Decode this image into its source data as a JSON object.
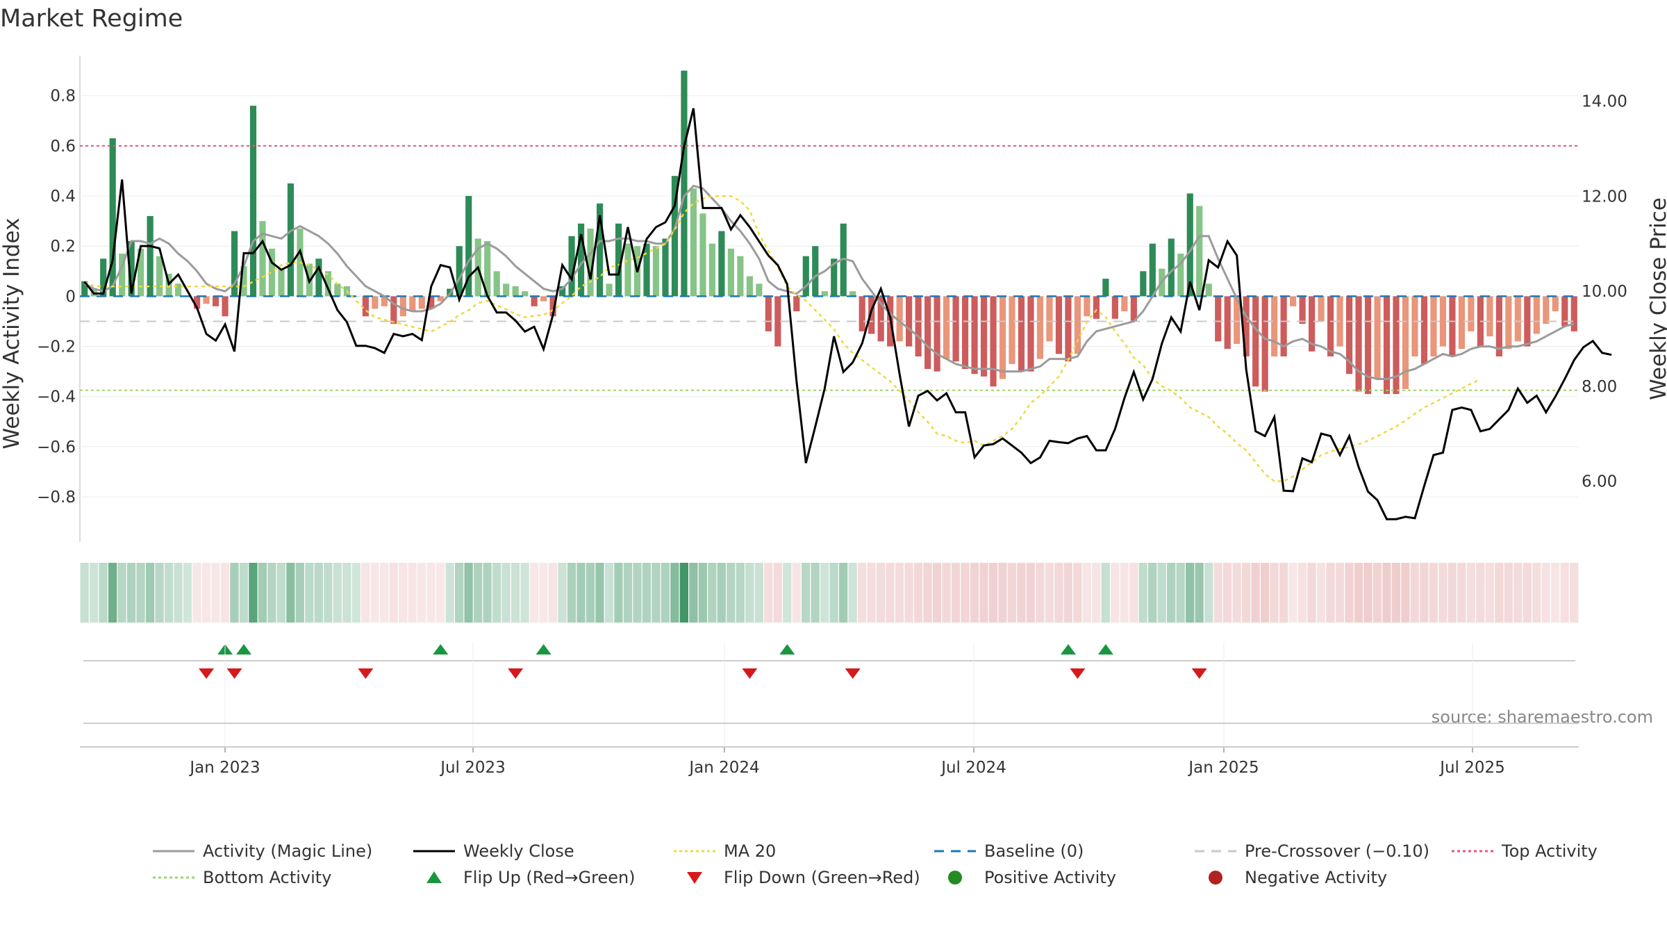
{
  "chart_data": {
    "type": "bar",
    "title": "Market Regime",
    "left_axis_label": "Weekly Activity Index",
    "right_axis_label": "Weekly Close Price",
    "left_ticks": [
      "0.8",
      "0.6",
      "0.4",
      "0.2",
      "0",
      "−0.2",
      "−0.4",
      "−0.6",
      "−0.8"
    ],
    "right_ticks": [
      "14.00",
      "12.00",
      "10.00",
      "8.00",
      "6.00"
    ],
    "x_ticks": [
      "Jan 2023",
      "Jul 2023",
      "Jan 2024",
      "Jul 2024",
      "Jan 2025",
      "Jul 2025"
    ],
    "ylim_left": [
      -0.98,
      0.96
    ],
    "ylim_right": [
      4.72,
      14.96
    ],
    "reference_lines": {
      "top_activity": 0.6,
      "bottom_activity": -0.375,
      "pre_crossover": -0.1,
      "baseline": 0
    },
    "activity_index": [
      0.06,
      0.03,
      0.15,
      0.63,
      0.17,
      0.22,
      0.19,
      0.32,
      0.16,
      0.09,
      0.05,
      0.0,
      -0.05,
      -0.03,
      -0.04,
      -0.08,
      0.26,
      0.12,
      0.76,
      0.3,
      0.19,
      0.11,
      0.45,
      0.27,
      0.13,
      0.15,
      0.1,
      0.05,
      0.04,
      0.0,
      -0.08,
      -0.05,
      -0.04,
      -0.11,
      -0.08,
      -0.06,
      -0.05,
      -0.05,
      -0.02,
      0.03,
      0.2,
      0.4,
      0.23,
      0.22,
      0.1,
      0.05,
      0.04,
      0.02,
      -0.04,
      -0.02,
      -0.08,
      0.04,
      0.24,
      0.29,
      0.27,
      0.37,
      0.05,
      0.29,
      0.21,
      0.2,
      0.21,
      0.2,
      0.23,
      0.48,
      0.9,
      0.43,
      0.33,
      0.21,
      0.26,
      0.19,
      0.16,
      0.08,
      0.05,
      -0.14,
      -0.2,
      0.0,
      -0.06,
      0.16,
      0.2,
      0.02,
      0.15,
      0.29,
      0.02,
      -0.14,
      -0.15,
      -0.18,
      -0.2,
      -0.18,
      -0.2,
      -0.24,
      -0.29,
      -0.3,
      -0.25,
      -0.26,
      -0.29,
      -0.31,
      -0.32,
      -0.36,
      -0.33,
      -0.27,
      -0.3,
      -0.3,
      -0.25,
      -0.18,
      -0.23,
      -0.26,
      -0.23,
      -0.08,
      -0.09,
      0.07,
      -0.09,
      -0.06,
      -0.1,
      0.1,
      0.21,
      0.11,
      0.23,
      0.17,
      0.41,
      0.36,
      0.05,
      -0.18,
      -0.21,
      -0.19,
      -0.24,
      -0.36,
      -0.38,
      -0.24,
      -0.24,
      -0.04,
      -0.11,
      -0.22,
      -0.1,
      -0.24,
      -0.2,
      -0.31,
      -0.38,
      -0.39,
      -0.33,
      -0.39,
      -0.39,
      -0.37,
      -0.24,
      -0.27,
      -0.24,
      -0.2,
      -0.24,
      -0.21,
      -0.14,
      -0.2,
      -0.16,
      -0.24,
      -0.21,
      -0.18,
      -0.2,
      -0.15,
      -0.11,
      -0.06,
      -0.12,
      -0.14
    ],
    "weekly_close": [
      10.2,
      9.95,
      9.95,
      10.65,
      12.35,
      9.95,
      10.95,
      10.95,
      10.9,
      10.15,
      10.35,
      10.0,
      9.65,
      9.1,
      8.96,
      9.3,
      8.73,
      10.8,
      10.8,
      11.05,
      10.6,
      10.45,
      10.55,
      10.85,
      10.2,
      10.5,
      10.05,
      9.6,
      9.35,
      8.85,
      8.85,
      8.8,
      8.7,
      9.1,
      9.05,
      9.1,
      8.97,
      10.1,
      10.55,
      10.5,
      9.82,
      10.3,
      10.5,
      9.9,
      9.55,
      9.55,
      9.38,
      9.15,
      9.25,
      8.78,
      9.5,
      10.55,
      10.25,
      11.2,
      10.25,
      11.6,
      10.35,
      10.35,
      11.35,
      10.4,
      11.1,
      11.35,
      11.45,
      11.8,
      13.05,
      13.85,
      11.75,
      11.75,
      11.75,
      11.3,
      11.6,
      11.35,
      11.05,
      10.75,
      10.55,
      10.15,
      8.1,
      6.38,
      7.15,
      7.95,
      9.05,
      8.3,
      8.5,
      8.9,
      9.6,
      10.05,
      9.45,
      8.25,
      7.15,
      7.8,
      7.9,
      7.7,
      7.85,
      7.45,
      7.45,
      6.5,
      6.75,
      6.78,
      6.9,
      6.75,
      6.6,
      6.38,
      6.5,
      6.85,
      6.82,
      6.8,
      6.9,
      6.95,
      6.65,
      6.65,
      7.1,
      7.75,
      8.3,
      7.72,
      8.15,
      8.9,
      9.45,
      9.15,
      10.2,
      9.6,
      10.65,
      10.5,
      11.05,
      10.75,
      8.35,
      7.05,
      6.95,
      7.35,
      5.8,
      5.79,
      6.48,
      6.4,
      7.0,
      6.95,
      6.55,
      6.95,
      6.3,
      5.78,
      5.6,
      5.2,
      5.2,
      5.25,
      5.22,
      5.9,
      6.55,
      6.6,
      7.5,
      7.55,
      7.5,
      7.05,
      7.1,
      7.3,
      7.5,
      7.95,
      7.65,
      7.8,
      7.45,
      7.78,
      8.15,
      8.55,
      8.82,
      8.95,
      8.7,
      8.66
    ],
    "ma20": [
      10.2,
      10.1,
      10.1,
      10.1,
      10.1,
      10.1,
      10.1,
      10.1,
      10.1,
      10.1,
      10.1,
      10.1,
      10.1,
      10.1,
      10.1,
      10.1,
      10.1,
      10.1,
      10.2,
      10.3,
      10.4,
      10.55,
      10.6,
      10.6,
      10.55,
      10.45,
      10.35,
      10.15,
      10.0,
      9.8,
      9.6,
      9.45,
      9.4,
      9.35,
      9.3,
      9.25,
      9.2,
      9.15,
      9.25,
      9.35,
      9.5,
      9.6,
      9.75,
      9.8,
      9.7,
      9.62,
      9.52,
      9.45,
      9.48,
      9.5,
      9.6,
      9.75,
      9.9,
      10.1,
      10.2,
      10.3,
      10.5,
      10.55,
      10.65,
      10.7,
      10.8,
      10.9,
      11.0,
      11.3,
      11.65,
      11.85,
      11.95,
      12.0,
      12.0,
      12.0,
      11.9,
      11.7,
      11.2,
      10.85,
      10.5,
      10.1,
      9.92,
      9.8,
      9.6,
      9.4,
      9.2,
      8.9,
      8.7,
      8.55,
      8.4,
      8.25,
      8.1,
      7.9,
      7.7,
      7.45,
      7.25,
      7.0,
      6.95,
      6.85,
      6.8,
      6.85,
      6.75,
      6.85,
      6.95,
      7.1,
      7.35,
      7.65,
      7.8,
      8.0,
      8.2,
      8.55,
      8.95,
      9.35,
      9.6,
      9.45,
      9.15,
      8.9,
      8.6,
      8.45,
      8.15,
      8.0,
      7.9,
      7.75,
      7.55,
      7.45,
      7.35,
      7.15,
      7.0,
      6.8,
      6.65,
      6.4,
      6.15,
      6.0,
      6.0,
      6.1,
      6.25,
      6.4,
      6.55,
      6.62,
      6.68,
      6.72,
      6.78,
      6.85,
      6.95,
      7.05,
      7.15,
      7.28,
      7.42,
      7.55,
      7.65,
      7.75,
      7.85,
      7.95,
      8.05,
      8.15
    ],
    "magic_line": [
      0.05,
      0.03,
      0.02,
      0.04,
      0.12,
      0.22,
      0.22,
      0.21,
      0.23,
      0.21,
      0.17,
      0.14,
      0.1,
      0.05,
      0.03,
      0.02,
      0.05,
      0.12,
      0.22,
      0.25,
      0.24,
      0.23,
      0.26,
      0.28,
      0.26,
      0.24,
      0.21,
      0.17,
      0.12,
      0.08,
      0.04,
      0.02,
      0.0,
      -0.03,
      -0.05,
      -0.06,
      -0.06,
      -0.05,
      -0.03,
      0.01,
      0.07,
      0.14,
      0.19,
      0.21,
      0.19,
      0.16,
      0.12,
      0.09,
      0.06,
      0.03,
      0.02,
      0.03,
      0.07,
      0.13,
      0.17,
      0.22,
      0.22,
      0.23,
      0.23,
      0.22,
      0.22,
      0.21,
      0.21,
      0.27,
      0.4,
      0.44,
      0.43,
      0.39,
      0.35,
      0.3,
      0.26,
      0.21,
      0.15,
      0.06,
      0.03,
      0.02,
      0.01,
      0.04,
      0.08,
      0.1,
      0.13,
      0.15,
      0.14,
      0.07,
      0.02,
      -0.03,
      -0.07,
      -0.1,
      -0.13,
      -0.16,
      -0.2,
      -0.23,
      -0.25,
      -0.27,
      -0.28,
      -0.29,
      -0.29,
      -0.29,
      -0.3,
      -0.3,
      -0.3,
      -0.29,
      -0.28,
      -0.25,
      -0.25,
      -0.25,
      -0.24,
      -0.18,
      -0.14,
      -0.13,
      -0.12,
      -0.11,
      -0.1,
      -0.06,
      0.0,
      0.06,
      0.1,
      0.13,
      0.18,
      0.24,
      0.24,
      0.15,
      0.07,
      -0.01,
      -0.08,
      -0.13,
      -0.17,
      -0.18,
      -0.2,
      -0.18,
      -0.17,
      -0.19,
      -0.2,
      -0.22,
      -0.23,
      -0.26,
      -0.3,
      -0.32,
      -0.33,
      -0.33,
      -0.32,
      -0.3,
      -0.29,
      -0.27,
      -0.25,
      -0.23,
      -0.24,
      -0.23,
      -0.21,
      -0.2,
      -0.2,
      -0.21,
      -0.2,
      -0.2,
      -0.19,
      -0.18,
      -0.16,
      -0.14,
      -0.12,
      -0.11
    ],
    "flip_up_weeks": [
      15,
      17,
      38,
      49,
      75,
      105,
      109
    ],
    "flip_down_weeks": [
      13,
      16,
      30,
      46,
      71,
      82,
      106,
      119
    ],
    "colors": {
      "pos_dark": "#2e8b57",
      "pos_light": "#86c487",
      "neg_dark": "#cd5c5c",
      "neg_light": "#e9967a",
      "close": "#000000",
      "magic": "#9b9b9b",
      "ma20": "#f0d840",
      "baseline": "#1f77b4",
      "pre_cross": "#c8c8c8",
      "top": "#e8547a",
      "bottom": "#9ad66b",
      "flip_up": "#1a9641",
      "flip_down": "#d7191c",
      "pos_dot": "#228b22",
      "neg_dot": "#b22222"
    },
    "legend": [
      {
        "label": "Activity (Magic Line)",
        "kind": "line",
        "color": "#9b9b9b",
        "dash": ""
      },
      {
        "label": "Weekly Close",
        "kind": "line",
        "color": "#000000",
        "dash": ""
      },
      {
        "label": "MA 20",
        "kind": "line",
        "color": "#f0d840",
        "dash": "4,4"
      },
      {
        "label": "Baseline (0)",
        "kind": "line",
        "color": "#1f77b4",
        "dash": "14,10"
      },
      {
        "label": "Pre-Crossover (−0.10)",
        "kind": "line",
        "color": "#c8c8c8",
        "dash": "14,10"
      },
      {
        "label": "Top Activity",
        "kind": "line",
        "color": "#e8547a",
        "dash": "4,4"
      },
      {
        "label": "Bottom Activity",
        "kind": "line",
        "color": "#9ad66b",
        "dash": "4,4"
      },
      {
        "label": "Flip Up (Red→Green)",
        "kind": "up",
        "color": "#1a9641",
        "dash": ""
      },
      {
        "label": "Flip Down (Green→Red)",
        "kind": "down",
        "color": "#d7191c",
        "dash": ""
      },
      {
        "label": "Positive Activity",
        "kind": "dot",
        "color": "#228b22",
        "dash": ""
      },
      {
        "label": "Negative Activity",
        "kind": "dot",
        "color": "#b22222",
        "dash": ""
      }
    ],
    "source": "source: sharemaestro.com"
  }
}
